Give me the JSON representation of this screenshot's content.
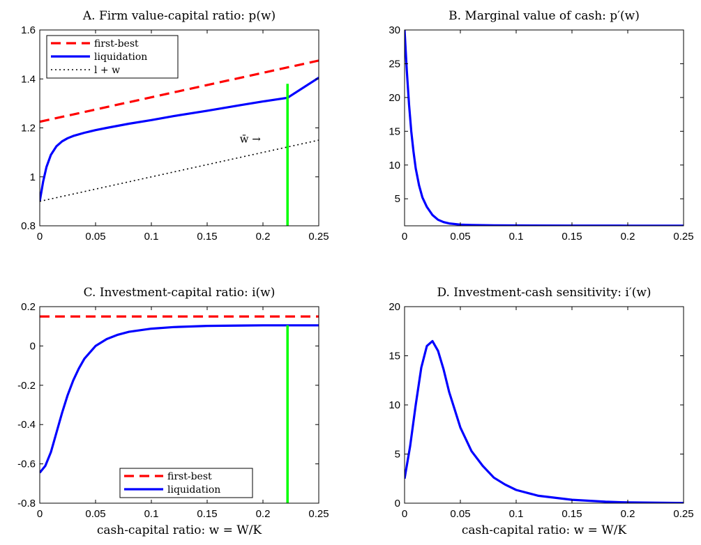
{
  "chart_data": [
    {
      "id": "A",
      "type": "line",
      "title": "A. Firm value-capital ratio: p(w)",
      "xlabel": "",
      "ylabel": "",
      "xlim": [
        0,
        0.25
      ],
      "ylim": [
        0.8,
        1.6
      ],
      "xticks": [
        0,
        0.05,
        0.1,
        0.15,
        0.2,
        0.25
      ],
      "xtick_labels": [
        "0",
        "0.05",
        "0.1",
        "0.15",
        "0.2",
        "0.25"
      ],
      "yticks": [
        0.8,
        1,
        1.2,
        1.4,
        1.6
      ],
      "ytick_labels": [
        "0.8",
        "1",
        "1.2",
        "1.4",
        "1.6"
      ],
      "grid": false,
      "legend_position": "top-left",
      "series": [
        {
          "name": "first-best",
          "style": "dashed",
          "color": "#ff0000",
          "x": [
            0,
            0.25
          ],
          "y": [
            1.225,
            1.475
          ]
        },
        {
          "name": "liquidation",
          "style": "solid",
          "color": "#0000ff",
          "x": [
            0,
            0.003,
            0.006,
            0.01,
            0.015,
            0.02,
            0.025,
            0.03,
            0.04,
            0.05,
            0.06,
            0.08,
            0.1,
            0.12,
            0.15,
            0.18,
            0.2,
            0.222,
            0.25
          ],
          "y": [
            0.9,
            0.98,
            1.04,
            1.09,
            1.125,
            1.145,
            1.158,
            1.167,
            1.18,
            1.191,
            1.2,
            1.217,
            1.232,
            1.248,
            1.27,
            1.293,
            1.308,
            1.323,
            1.405
          ]
        },
        {
          "name": "l + w",
          "style": "dotted",
          "color": "#000000",
          "x": [
            0,
            0.25
          ],
          "y": [
            0.9,
            1.15
          ]
        }
      ],
      "annotations": [
        {
          "type": "vertical-line",
          "color": "#00ff00",
          "x": 0.222,
          "y_from": 0.8,
          "y_to": 1.38
        },
        {
          "type": "text",
          "text": "w̄ →",
          "x": 0.198,
          "y": 1.14
        }
      ]
    },
    {
      "id": "B",
      "type": "line",
      "title": "B. Marginal value of cash: p′(w)",
      "xlabel": "",
      "ylabel": "",
      "xlim": [
        0,
        0.25
      ],
      "ylim": [
        1,
        30
      ],
      "xticks": [
        0,
        0.05,
        0.1,
        0.15,
        0.2,
        0.25
      ],
      "xtick_labels": [
        "0",
        "0.05",
        "0.1",
        "0.15",
        "0.2",
        "0.25"
      ],
      "yticks": [
        5,
        10,
        15,
        20,
        25,
        30
      ],
      "ytick_labels": [
        "5",
        "10",
        "15",
        "20",
        "25",
        "30"
      ],
      "grid": false,
      "series": [
        {
          "style": "solid",
          "color": "#0000ff",
          "x": [
            0,
            0.002,
            0.004,
            0.006,
            0.008,
            0.01,
            0.013,
            0.016,
            0.02,
            0.025,
            0.03,
            0.035,
            0.04,
            0.05,
            0.06,
            0.08,
            0.1,
            0.15,
            0.2,
            0.25
          ],
          "y": [
            30,
            24,
            19,
            15,
            12,
            9.5,
            7,
            5.2,
            3.8,
            2.6,
            1.9,
            1.55,
            1.35,
            1.18,
            1.12,
            1.07,
            1.05,
            1.03,
            1.02,
            1.02
          ]
        }
      ]
    },
    {
      "id": "C",
      "type": "line",
      "title": "C. Investment-capital ratio: i(w)",
      "xlabel": "cash-capital ratio: w = W/K",
      "ylabel": "",
      "xlim": [
        0,
        0.25
      ],
      "ylim": [
        -0.8,
        0.2
      ],
      "xticks": [
        0,
        0.05,
        0.1,
        0.15,
        0.2,
        0.25
      ],
      "xtick_labels": [
        "0",
        "0.05",
        "0.1",
        "0.15",
        "0.2",
        "0.25"
      ],
      "yticks": [
        -0.8,
        -0.6,
        -0.4,
        -0.2,
        0,
        0.2
      ],
      "ytick_labels": [
        "-0.8",
        "-0.6",
        "-0.4",
        "-0.2",
        "0",
        "0.2"
      ],
      "grid": false,
      "legend_position": "bottom-center",
      "series": [
        {
          "name": "first-best",
          "style": "dashed",
          "color": "#ff0000",
          "x": [
            0,
            0.25
          ],
          "y": [
            0.15,
            0.15
          ]
        },
        {
          "name": "liquidation",
          "style": "solid",
          "color": "#0000ff",
          "x": [
            0,
            0.005,
            0.01,
            0.015,
            0.02,
            0.025,
            0.03,
            0.035,
            0.04,
            0.05,
            0.06,
            0.07,
            0.08,
            0.1,
            0.12,
            0.15,
            0.18,
            0.2,
            0.25
          ],
          "y": [
            -0.645,
            -0.61,
            -0.54,
            -0.44,
            -0.34,
            -0.25,
            -0.175,
            -0.115,
            -0.065,
            0.0,
            0.035,
            0.057,
            0.072,
            0.088,
            0.096,
            0.102,
            0.104,
            0.105,
            0.105
          ]
        }
      ],
      "annotations": [
        {
          "type": "vertical-line",
          "color": "#00ff00",
          "x": 0.222,
          "y_from": -0.8,
          "y_to": 0.105
        }
      ]
    },
    {
      "id": "D",
      "type": "line",
      "title": "D. Investment-cash sensitivity: i′(w)",
      "xlabel": "cash-capital ratio: w = W/K",
      "ylabel": "",
      "xlim": [
        0,
        0.25
      ],
      "ylim": [
        0,
        20
      ],
      "xticks": [
        0,
        0.05,
        0.1,
        0.15,
        0.2,
        0.25
      ],
      "xtick_labels": [
        "0",
        "0.05",
        "0.1",
        "0.15",
        "0.2",
        "0.25"
      ],
      "yticks": [
        0,
        5,
        10,
        15,
        20
      ],
      "ytick_labels": [
        "0",
        "5",
        "10",
        "15",
        "20"
      ],
      "grid": false,
      "series": [
        {
          "style": "solid",
          "color": "#0000ff",
          "x": [
            0,
            0.005,
            0.01,
            0.015,
            0.02,
            0.025,
            0.03,
            0.035,
            0.04,
            0.045,
            0.05,
            0.06,
            0.07,
            0.08,
            0.09,
            0.1,
            0.12,
            0.15,
            0.18,
            0.2,
            0.25
          ],
          "y": [
            2.5,
            5.8,
            10,
            13.8,
            16,
            16.5,
            15.5,
            13.6,
            11.3,
            9.5,
            7.7,
            5.3,
            3.8,
            2.6,
            1.9,
            1.35,
            0.75,
            0.35,
            0.15,
            0.08,
            0.02
          ]
        }
      ]
    }
  ]
}
